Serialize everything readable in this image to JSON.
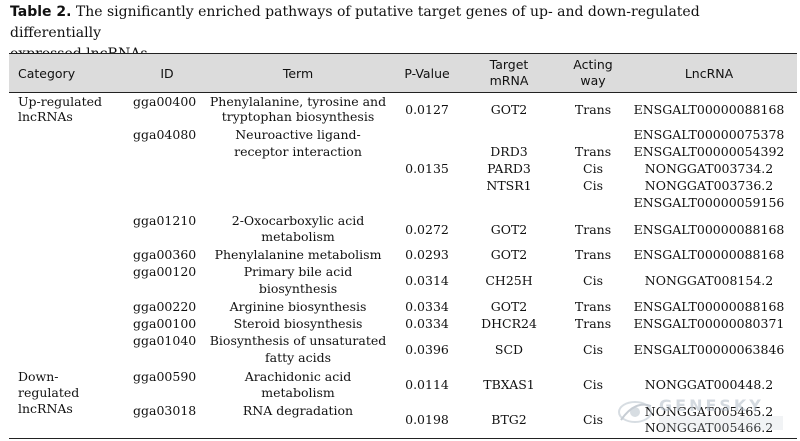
{
  "caption": {
    "label": "Table 2.",
    "line1": "The significantly enriched pathways of putative target genes of up- and down-regulated differentially",
    "line2": "expressed lncRNAs"
  },
  "table": {
    "headers": {
      "category": "Category",
      "id": "ID",
      "term": "Term",
      "pvalue": "P-Value",
      "target_l1": "Target",
      "target_l2": "mRNA",
      "acting_l1": "Acting",
      "acting_l2": "way",
      "lncrna": "LncRNA"
    },
    "categories": {
      "up_l1": "Up-regulated",
      "up_l2": "lncRNAs",
      "down_l1": "Down-",
      "down_l2": "regulated",
      "down_l3": "lncRNAs"
    },
    "rows": [
      {
        "id": "gga00400",
        "term": [
          "Phenylalanine, tyrosine and",
          "tryptophan biosynthesis"
        ],
        "pvalue": "0.0127",
        "mrna": "GOT2",
        "way": "Trans",
        "lnc": "ENSGALT00000088168"
      },
      {
        "id": "gga04080",
        "term": [
          "Neuroactive ligand-",
          "receptor interaction"
        ],
        "pvalue": "0.0135",
        "mrna_list": [
          "DRD3",
          "PARD3",
          "NTSR1"
        ],
        "way_list": [
          "Trans",
          "Cis",
          "Cis"
        ],
        "lnc_list": [
          "ENSGALT00000075378",
          "ENSGALT00000054392",
          "NONGGAT003734.2",
          "NONGGAT003736.2",
          "ENSGALT00000059156"
        ]
      },
      {
        "id": "gga01210",
        "term": [
          "2-Oxocarboxylic acid",
          "metabolism"
        ],
        "pvalue": "0.0272",
        "mrna": "GOT2",
        "way": "Trans",
        "lnc": "ENSGALT00000088168"
      },
      {
        "id": "gga00360",
        "term": [
          "Phenylalanine metabolism"
        ],
        "pvalue": "0.0293",
        "mrna": "GOT2",
        "way": "Trans",
        "lnc": "ENSGALT00000088168"
      },
      {
        "id": "gga00120",
        "term": [
          "Primary bile acid",
          "biosynthesis"
        ],
        "pvalue": "0.0314",
        "mrna": "CH25H",
        "way": "Cis",
        "lnc": "NONGGAT008154.2"
      },
      {
        "id": "gga00220",
        "term": [
          "Arginine biosynthesis"
        ],
        "pvalue": "0.0334",
        "mrna": "GOT2",
        "way": "Trans",
        "lnc": "ENSGALT00000088168"
      },
      {
        "id": "gga00100",
        "term": [
          "Steroid biosynthesis"
        ],
        "pvalue": "0.0334",
        "mrna": "DHCR24",
        "way": "Trans",
        "lnc": "ENSGALT00000080371"
      },
      {
        "id": "gga01040",
        "term": [
          "Biosynthesis of unsaturated",
          "fatty acids"
        ],
        "pvalue": "0.0396",
        "mrna": "SCD",
        "way": "Cis",
        "lnc": "ENSGALT00000063846"
      },
      {
        "id": "gga00590",
        "term": [
          "Arachidonic acid",
          "metabolism"
        ],
        "pvalue": "0.0114",
        "mrna": "TBXAS1",
        "way": "Cis",
        "lnc": "NONGGAT000448.2"
      },
      {
        "id": "gga03018",
        "term": [
          "RNA degradation"
        ],
        "pvalue": "0.0198",
        "mrna": "BTG2",
        "way": "Cis",
        "lnc_list": [
          "NONGGAT005465.2",
          "NONGGAT005466.2"
        ]
      }
    ]
  },
  "watermark": {
    "text": "GENESKY",
    "icon": "genesky-logo-icon",
    "color": "#b8c2cc"
  }
}
